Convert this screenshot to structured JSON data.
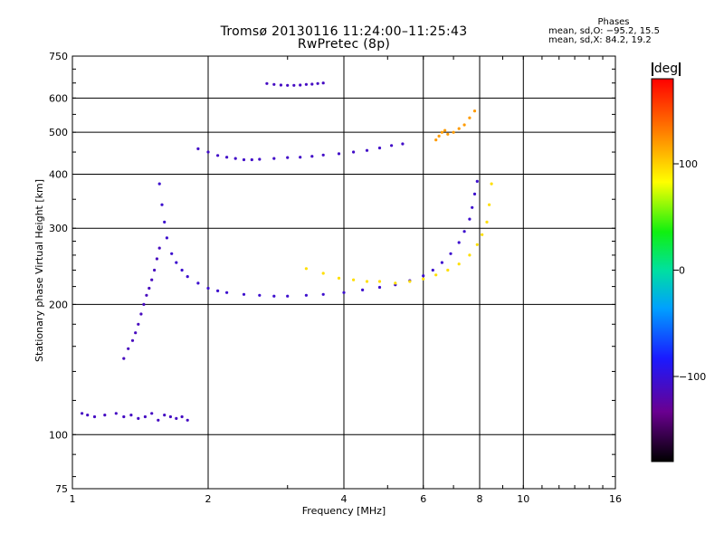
{
  "header": {
    "title_line1": "Tromsø 20130116 11:24:00–11:25:43",
    "title_line2": "RwPretec (8p)",
    "stats_title": "Phases",
    "stats_o": "mean, sd,O: −95.2, 15.5",
    "stats_x": "mean, sd,X:  84.2, 19.2"
  },
  "colorbar": {
    "unit": "deg",
    "ticks": [
      {
        "value": 100,
        "label": "100"
      },
      {
        "value": 0,
        "label": "0"
      },
      {
        "value": -100,
        "label": "−100"
      }
    ],
    "range": [
      -180,
      180
    ]
  },
  "chart_data": {
    "type": "scatter",
    "title": "Tromsø 20130116 11:24:00–11:25:43",
    "subtitle": "RwPretec (8p)",
    "xlabel": "Frequency [MHz]",
    "ylabel": "Stationary phase Virtual Height [km]",
    "x_scale": "log",
    "y_scale": "log",
    "xlim": [
      1,
      16
    ],
    "ylim": [
      75,
      750
    ],
    "x_ticks": [
      {
        "value": 1,
        "label": "1"
      },
      {
        "value": 2,
        "label": "2"
      },
      {
        "value": 4,
        "label": "4"
      },
      {
        "value": 6,
        "label": "6"
      },
      {
        "value": 8,
        "label": "8"
      },
      {
        "value": 10,
        "label": "10"
      },
      {
        "value": 16,
        "label": "16"
      }
    ],
    "y_ticks": [
      {
        "value": 75,
        "label": "75"
      },
      {
        "value": 100,
        "label": "100"
      },
      {
        "value": 200,
        "label": "200"
      },
      {
        "value": 300,
        "label": "300"
      },
      {
        "value": 400,
        "label": "400"
      },
      {
        "value": 500,
        "label": "500"
      },
      {
        "value": 600,
        "label": "600"
      },
      {
        "value": 750,
        "label": "750"
      }
    ],
    "grid": true,
    "grid_x": [
      2,
      4,
      6,
      8,
      10
    ],
    "grid_y": [
      100,
      200,
      300,
      400,
      500,
      600
    ],
    "color_by": "phase [deg]",
    "color_range": [
      -180,
      180
    ],
    "traces": [
      {
        "x": [
          1.05,
          1.08,
          1.12,
          1.18,
          1.25,
          1.3,
          1.35,
          1.4,
          1.45,
          1.5,
          1.55,
          1.6,
          1.65,
          1.7,
          1.75,
          1.8
        ],
        "y": [
          112,
          111,
          110,
          111,
          112,
          110,
          111,
          109,
          110,
          112,
          108,
          111,
          110,
          109,
          110,
          108
        ],
        "phase": -110
      },
      {
        "x": [
          1.3,
          1.33,
          1.36,
          1.38,
          1.4,
          1.42,
          1.44,
          1.46,
          1.48,
          1.5,
          1.52,
          1.54,
          1.56
        ],
        "y": [
          150,
          158,
          165,
          172,
          180,
          190,
          200,
          210,
          218,
          228,
          240,
          255,
          270
        ],
        "phase": -112
      },
      {
        "x": [
          1.56,
          1.58,
          1.6,
          1.62,
          1.66,
          1.7,
          1.75,
          1.8,
          1.9,
          2.0,
          2.1,
          2.2,
          2.4,
          2.6,
          2.8,
          3.0,
          3.3,
          3.6,
          4.0,
          4.4,
          4.8,
          5.2,
          5.6,
          6.0,
          6.3,
          6.6,
          6.9,
          7.2,
          7.4,
          7.6,
          7.7,
          7.8,
          7.9
        ],
        "y": [
          380,
          340,
          310,
          285,
          262,
          250,
          240,
          232,
          224,
          218,
          215,
          213,
          211,
          210,
          209,
          209,
          210,
          211,
          213,
          216,
          219,
          222,
          227,
          233,
          240,
          250,
          262,
          278,
          295,
          315,
          335,
          360,
          385
        ],
        "phase": -105
      },
      {
        "x": [
          3.3,
          3.6,
          3.9,
          4.2,
          4.5,
          4.8,
          5.2,
          5.6,
          6.0,
          6.4,
          6.8,
          7.2,
          7.6,
          7.9,
          8.1,
          8.3,
          8.4,
          8.5
        ],
        "y": [
          242,
          236,
          230,
          228,
          226,
          226,
          224,
          226,
          229,
          234,
          240,
          248,
          260,
          275,
          290,
          310,
          340,
          380
        ],
        "phase": 95
      },
      {
        "x": [
          1.9,
          2.0,
          2.1,
          2.2,
          2.3,
          2.4,
          2.5,
          2.6,
          2.8,
          3.0,
          3.2,
          3.4,
          3.6,
          3.9,
          4.2,
          4.5,
          4.8,
          5.1,
          5.4
        ],
        "y": [
          458,
          450,
          442,
          438,
          435,
          432,
          432,
          433,
          435,
          437,
          438,
          440,
          443,
          446,
          450,
          454,
          460,
          466,
          470
        ],
        "phase": -108
      },
      {
        "x": [
          2.7,
          2.8,
          2.9,
          3.0,
          3.1,
          3.2,
          3.3,
          3.4,
          3.5,
          3.6
        ],
        "y": [
          648,
          645,
          643,
          642,
          642,
          643,
          645,
          646,
          648,
          650
        ],
        "phase": -110
      },
      {
        "x": [
          6.4,
          6.5,
          6.6,
          6.7,
          6.8,
          7.0,
          7.2,
          7.4,
          7.6,
          7.8
        ],
        "y": [
          480,
          490,
          500,
          505,
          495,
          500,
          510,
          520,
          540,
          560
        ],
        "phase": 120
      }
    ]
  }
}
